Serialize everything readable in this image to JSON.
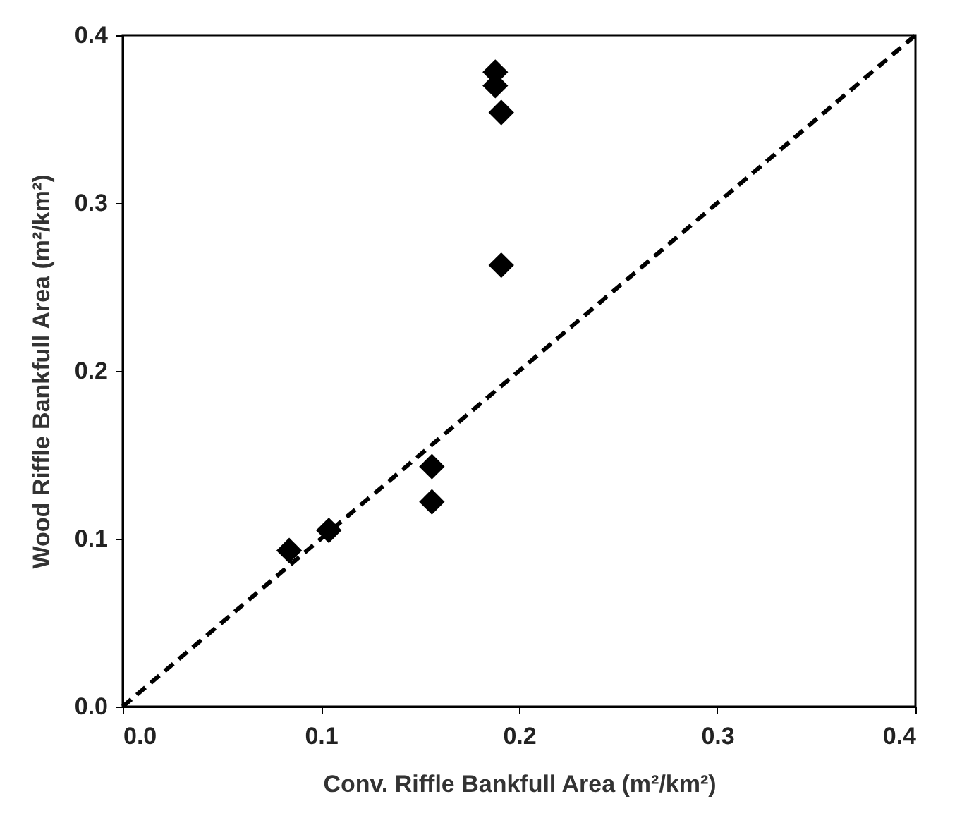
{
  "chart_data": {
    "type": "scatter",
    "xlabel": "Conv. Riffle Bankfull Area (m²/km²)",
    "ylabel": "Wood Riffle Bankfull Area (m²/km²)",
    "xlim": [
      0,
      0.4
    ],
    "ylim": [
      0,
      0.4
    ],
    "xticks": [
      {
        "value": 0,
        "label": "0.0"
      },
      0.1,
      0.2,
      0.3,
      0.4
    ],
    "yticks": [
      {
        "value": 0,
        "label": "0.0"
      },
      0.1,
      0.2,
      0.3,
      0.4
    ],
    "grid": false,
    "series": [
      {
        "marker": "diamond",
        "color": "#000000",
        "x": [
          0.084,
          0.104,
          0.156,
          0.156,
          0.188,
          0.188,
          0.191,
          0.191
        ],
        "values": [
          0.093,
          0.105,
          0.143,
          0.122,
          0.378,
          0.37,
          0.354,
          0.263
        ]
      },
      {
        "type": "line",
        "line_style": "dashed",
        "color": "#000000",
        "x": [
          0,
          0.4
        ],
        "values": [
          0,
          0.4
        ]
      }
    ]
  }
}
